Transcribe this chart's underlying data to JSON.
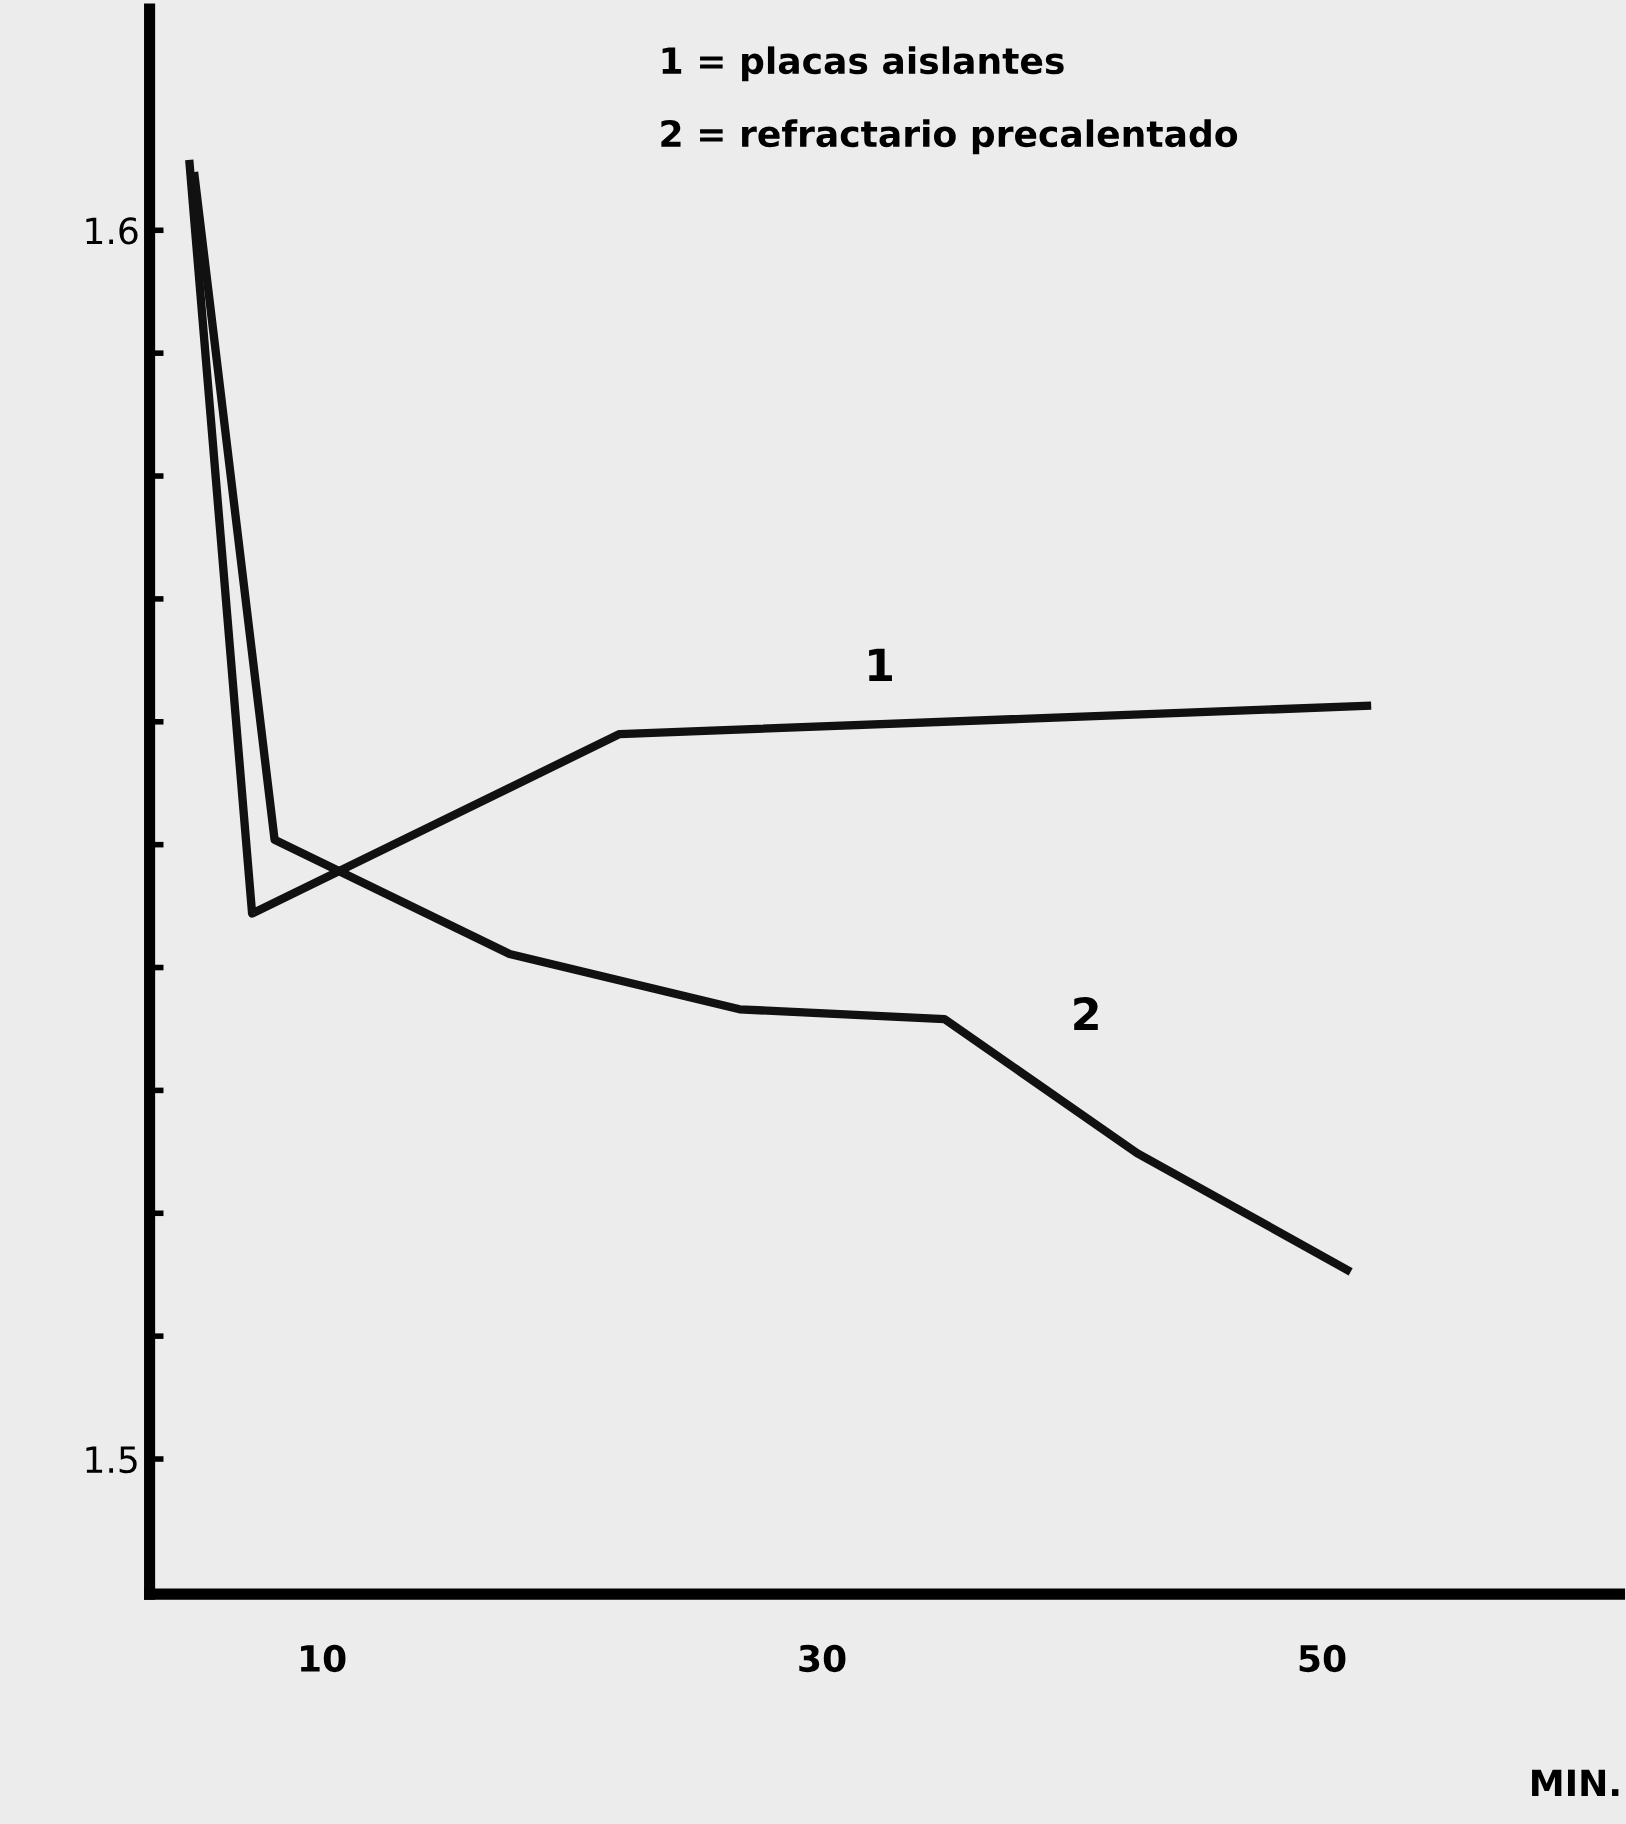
{
  "chart_data": {
    "type": "line",
    "xlabel": "MIN.",
    "xlim": [
      3.1,
      61.9
    ],
    "ylim": [
      1.489,
      1.618
    ],
    "xticks": [
      10,
      30,
      50
    ],
    "yticks": [
      {
        "value": 1.5,
        "label": "1.5"
      },
      {
        "value": 1.51,
        "label": null
      },
      {
        "value": 1.52,
        "label": null
      },
      {
        "value": 1.53,
        "label": null
      },
      {
        "value": 1.54,
        "label": null
      },
      {
        "value": 1.55,
        "label": null
      },
      {
        "value": 1.56,
        "label": null
      },
      {
        "value": 1.57,
        "label": null
      },
      {
        "value": 1.58,
        "label": null
      },
      {
        "value": 1.59,
        "label": null
      },
      {
        "value": 1.6,
        "label": "1.6"
      }
    ],
    "grid": false,
    "marker": "none",
    "line_style": "solid",
    "series": [
      {
        "color": "#111111",
        "x": [
          4.7,
          7.2,
          21.9,
          51.8
        ],
        "values": [
          1.6054,
          1.5444,
          1.559,
          1.5613
        ]
      },
      {
        "color": "#111111",
        "x": [
          4.9,
          8.1,
          17.5,
          26.7,
          34.9,
          42.6,
          51.0
        ],
        "values": [
          1.6044,
          1.5504,
          1.5411,
          1.5366,
          1.5358,
          1.5249,
          1.5154
        ]
      }
    ],
    "annotations": [
      "1 = placas aislantes",
      "2 = refractario precalentado",
      {
        "text": "1",
        "x": 32.3,
        "y": 1.5603
      },
      "2"
    ]
  }
}
